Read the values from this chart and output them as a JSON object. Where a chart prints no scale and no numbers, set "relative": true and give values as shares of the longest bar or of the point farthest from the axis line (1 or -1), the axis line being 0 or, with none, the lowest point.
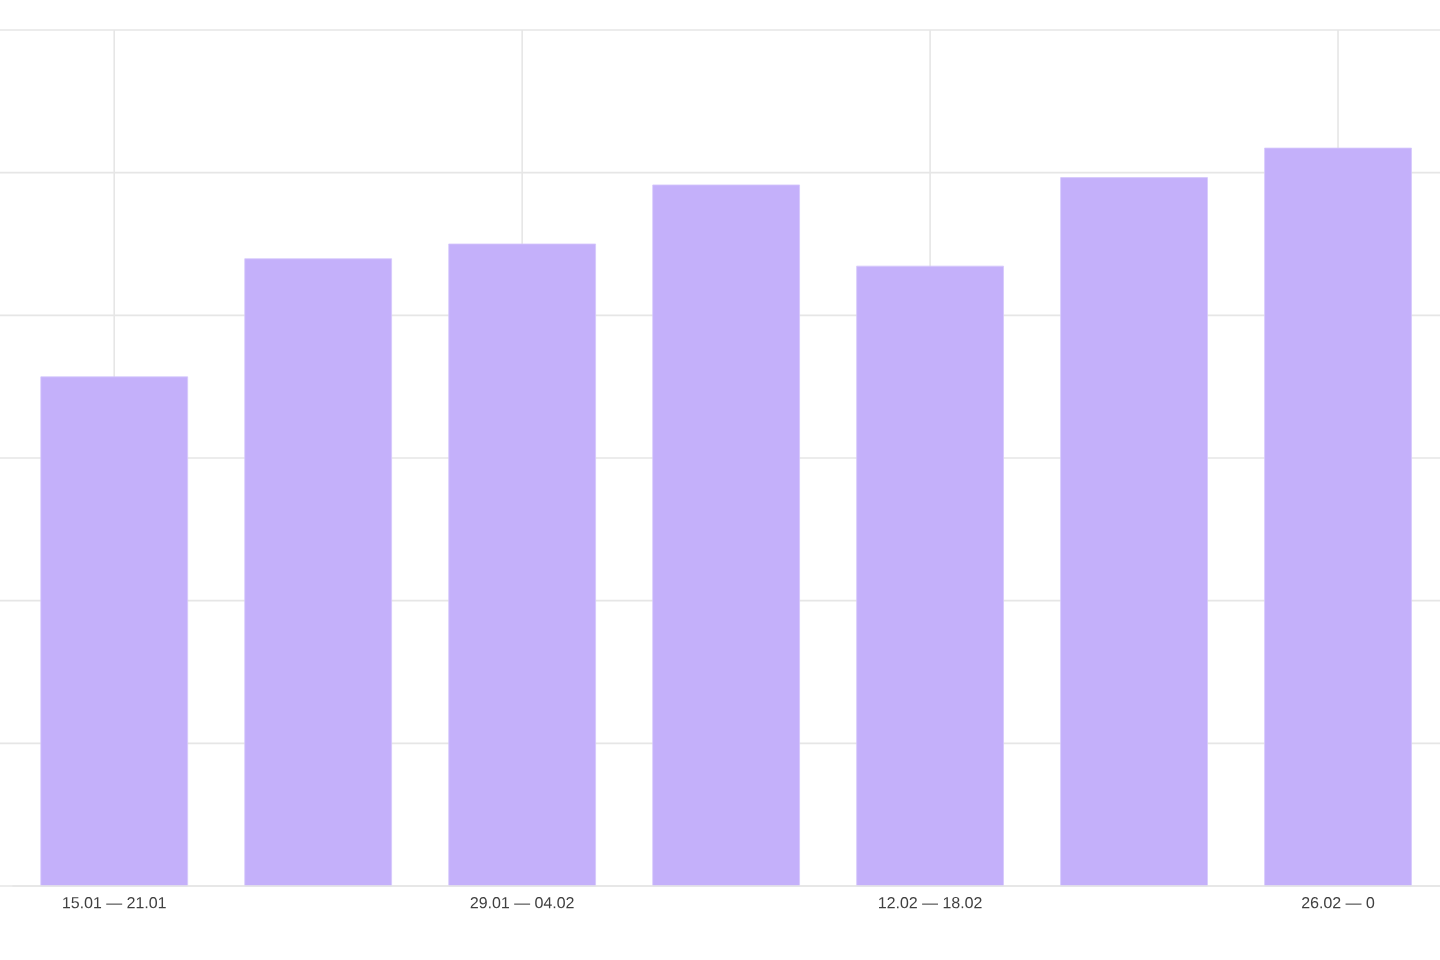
{
  "chart_data": {
    "type": "bar",
    "relative": true,
    "categories": [
      "15.01 — 21.01",
      null,
      "29.01 — 04.02",
      null,
      "12.02 — 18.02",
      null,
      "26.02 — 0"
    ],
    "values": [
      0.69,
      0.85,
      0.87,
      0.95,
      0.84,
      0.96,
      1
    ],
    "color": "#c4b0fa",
    "grid": true
  }
}
